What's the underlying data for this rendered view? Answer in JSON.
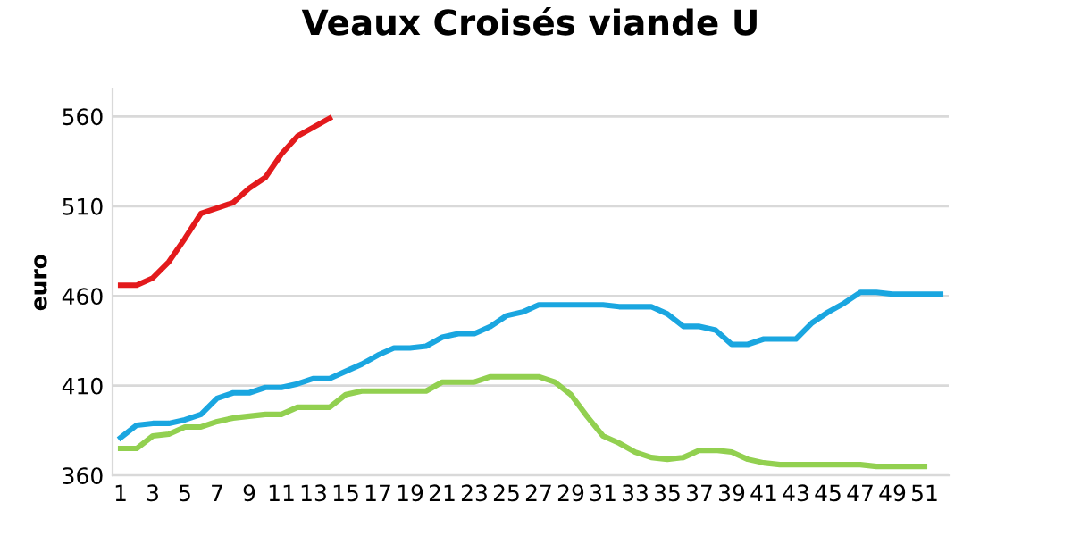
{
  "chart_data": {
    "type": "line",
    "title": "Veaux Croisés viande U",
    "ylabel": "euro",
    "xlim": [
      0.5,
      52.5
    ],
    "xticks": [
      1,
      3,
      5,
      7,
      9,
      11,
      13,
      15,
      17,
      19,
      21,
      23,
      25,
      27,
      29,
      31,
      33,
      35,
      37,
      39,
      41,
      43,
      45,
      47,
      49,
      51
    ],
    "ylim": [
      360,
      575
    ],
    "yticks": [
      360,
      410,
      460,
      510,
      560
    ],
    "grid": "y",
    "marker": "none",
    "line_style": "solid",
    "series": [
      {
        "color": "#92d050",
        "x": [
          1,
          2,
          3,
          4,
          5,
          6,
          7,
          8,
          9,
          10,
          11,
          12,
          13,
          14,
          15,
          16,
          17,
          18,
          19,
          20,
          21,
          22,
          23,
          24,
          25,
          26,
          27,
          28,
          29,
          30,
          31,
          32,
          33,
          34,
          35,
          36,
          37,
          38,
          39,
          40,
          41,
          42,
          43,
          44,
          45,
          46,
          47,
          48,
          49,
          50,
          51
        ],
        "values": [
          375,
          375,
          382,
          383,
          387,
          387,
          390,
          392,
          393,
          394,
          394,
          398,
          398,
          398,
          405,
          407,
          407,
          407,
          407,
          407,
          412,
          412,
          412,
          415,
          415,
          415,
          415,
          412,
          405,
          393,
          382,
          378,
          373,
          370,
          369,
          370,
          374,
          374,
          373,
          369,
          367,
          366,
          366,
          366,
          366,
          366,
          366,
          365,
          365,
          365,
          365
        ]
      },
      {
        "color": "#1aa6e0",
        "x": [
          1,
          2,
          3,
          4,
          5,
          6,
          7,
          8,
          9,
          10,
          11,
          12,
          13,
          14,
          15,
          16,
          17,
          18,
          19,
          20,
          21,
          22,
          23,
          24,
          25,
          26,
          27,
          28,
          29,
          30,
          31,
          32,
          33,
          34,
          35,
          36,
          37,
          38,
          39,
          40,
          41,
          42,
          43,
          44,
          45,
          46,
          47,
          48,
          49,
          50,
          51,
          52
        ],
        "values": [
          381,
          388,
          389,
          389,
          391,
          394,
          403,
          406,
          406,
          409,
          409,
          411,
          414,
          414,
          418,
          422,
          427,
          431,
          431,
          432,
          437,
          439,
          439,
          443,
          449,
          451,
          455,
          455,
          455,
          455,
          455,
          454,
          454,
          454,
          450,
          443,
          443,
          441,
          433,
          433,
          436,
          436,
          436,
          445,
          451,
          456,
          462,
          462,
          461,
          461,
          461,
          461
        ]
      },
      {
        "color": "#e31a1c",
        "x": [
          1,
          2,
          3,
          4,
          5,
          6,
          7,
          8,
          9,
          10,
          11,
          12,
          13,
          14
        ],
        "values": [
          466,
          466,
          470,
          479,
          492,
          506,
          509,
          512,
          520,
          526,
          539,
          549,
          554,
          559
        ]
      }
    ]
  }
}
